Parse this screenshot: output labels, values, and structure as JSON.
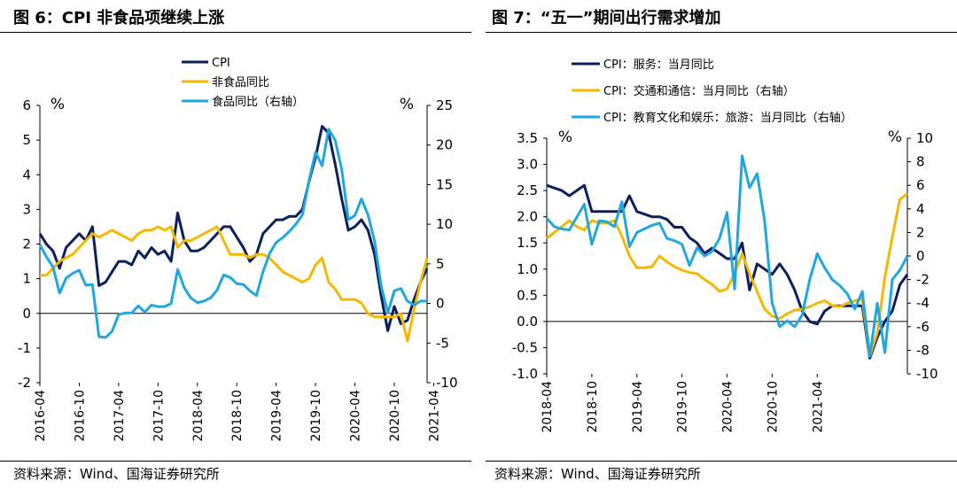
{
  "figures": [
    {
      "title": "图 6：CPI 非食品项继续上涨",
      "source": "资料来源：Wind、国海证券研究所"
    },
    {
      "title": "图 7：“五一”期间出行需求增加",
      "source": "资料来源：Wind、国海证券研究所"
    }
  ],
  "chart_data": [
    {
      "type": "line",
      "y_left": {
        "unit": "%",
        "lim": [
          -2,
          6
        ],
        "ticks": [
          -2,
          -1,
          0,
          1,
          2,
          3,
          4,
          5,
          6
        ]
      },
      "y_right": {
        "unit": "%",
        "lim": [
          -10,
          25
        ],
        "ticks": [
          -10,
          -5,
          0,
          5,
          10,
          15,
          20,
          25
        ]
      },
      "x_start": "2016-04",
      "x_tick_labels": [
        "2016-04",
        "2016-10",
        "2017-04",
        "2017-10",
        "2018-04",
        "2018-10",
        "2019-04",
        "2019-10",
        "2020-04",
        "2020-10",
        "2021-04"
      ],
      "legend_position": "top",
      "series": [
        {
          "name": "CPI",
          "axis": "left",
          "color": "#0b1f5c",
          "values": [
            2.3,
            2.0,
            1.8,
            1.3,
            1.9,
            2.1,
            2.3,
            2.1,
            2.5,
            0.8,
            0.9,
            1.2,
            1.5,
            1.5,
            1.4,
            1.8,
            1.6,
            1.9,
            1.7,
            1.8,
            1.5,
            2.9,
            2.1,
            1.8,
            1.8,
            1.9,
            2.1,
            2.3,
            2.5,
            2.5,
            2.2,
            1.9,
            1.5,
            1.7,
            2.3,
            2.5,
            2.7,
            2.7,
            2.8,
            2.8,
            3.0,
            3.8,
            4.5,
            5.4,
            5.2,
            4.3,
            3.3,
            2.4,
            2.5,
            2.7,
            2.4,
            1.7,
            0.5,
            -0.5,
            0.2,
            -0.3,
            -0.2,
            0.4,
            0.9,
            1.3
          ]
        },
        {
          "name": "非食品同比",
          "axis": "left",
          "color": "#f5b800",
          "values": [
            1.1,
            1.1,
            1.3,
            1.5,
            1.6,
            1.7,
            1.9,
            2.1,
            2.3,
            2.2,
            2.3,
            2.4,
            2.3,
            2.2,
            2.1,
            2.3,
            2.4,
            2.4,
            2.5,
            2.4,
            2.5,
            1.9,
            2.1,
            2.1,
            2.2,
            2.3,
            2.4,
            2.5,
            2.1,
            1.7,
            1.7,
            1.7,
            1.6,
            1.7,
            1.7,
            1.6,
            1.4,
            1.2,
            1.1,
            1.0,
            0.9,
            1.0,
            1.4,
            1.6,
            0.9,
            0.7,
            0.4,
            0.4,
            0.4,
            0.3,
            0.0,
            -0.1,
            -0.1,
            -0.1,
            -0.1,
            0.0,
            -0.8,
            0.1,
            0.9,
            1.6
          ]
        },
        {
          "name": "食品同比（右轴）",
          "axis": "right",
          "color": "#1fa8e0",
          "values": [
            7.4,
            5.9,
            4.6,
            1.3,
            3.2,
            3.8,
            4.2,
            2.3,
            2.4,
            -4.2,
            -4.3,
            -3.5,
            -1.4,
            -1.2,
            -1.2,
            -0.3,
            -1.1,
            -0.2,
            -0.4,
            -0.4,
            0.0,
            4.3,
            2.0,
            0.7,
            0.1,
            0.3,
            0.7,
            1.7,
            3.6,
            3.3,
            2.5,
            2.4,
            1.6,
            1.0,
            4.0,
            6.3,
            7.7,
            8.3,
            9.1,
            10.0,
            11.2,
            15.5,
            19.1,
            17.4,
            22.0,
            20.6,
            16.9,
            10.6,
            11.1,
            13.2,
            11.2,
            7.9,
            2.2,
            -1.2,
            1.6,
            1.9,
            0.3,
            -0.2,
            0.3,
            0.3
          ]
        }
      ]
    },
    {
      "type": "line",
      "y_left": {
        "unit": "%",
        "lim": [
          -1.0,
          3.5
        ],
        "ticks": [
          "-1.0",
          "-0.5",
          "0.0",
          "0.5",
          "1.0",
          "1.5",
          "2.0",
          "2.5",
          "3.0",
          "3.5"
        ]
      },
      "y_right": {
        "unit": "%",
        "lim": [
          -10,
          10
        ],
        "ticks": [
          -10,
          -8,
          -6,
          -4,
          -2,
          0,
          2,
          4,
          6,
          8,
          10
        ]
      },
      "x_start": "2018-04",
      "x_tick_labels": [
        "2018-04",
        "2018-10",
        "2019-04",
        "2019-10",
        "2020-04",
        "2020-10",
        "2021-04"
      ],
      "legend_position": "top",
      "series": [
        {
          "name": "CPI：服务：当月同比",
          "axis": "left",
          "color": "#0b1f5c",
          "values": [
            2.6,
            2.55,
            2.5,
            2.4,
            2.5,
            2.6,
            2.1,
            2.1,
            2.1,
            2.1,
            2.1,
            2.4,
            2.1,
            2.05,
            2.0,
            2.0,
            1.95,
            1.8,
            1.8,
            1.6,
            1.5,
            1.3,
            1.4,
            1.3,
            1.2,
            1.2,
            1.5,
            0.6,
            1.1,
            1.0,
            0.9,
            1.1,
            0.9,
            0.6,
            0.2,
            0.0,
            -0.05,
            0.2,
            0.3,
            0.3,
            0.3,
            0.3,
            0.3,
            -0.7,
            -0.3,
            0.0,
            0.2,
            0.7,
            0.9
          ]
        },
        {
          "name": "CPI：交通和通信：当月同比（右轴）",
          "axis": "right",
          "color": "#f5b800",
          "values": [
            1.5,
            2.0,
            2.5,
            3.0,
            2.5,
            2.2,
            3.0,
            2.8,
            2.8,
            3.0,
            1.7,
            0.0,
            -1.0,
            -1.0,
            -0.9,
            0.0,
            -0.5,
            -0.9,
            -1.2,
            -1.4,
            -1.5,
            -2.0,
            -2.4,
            -3.0,
            -2.8,
            -1.5,
            0.2,
            -1.5,
            -3.0,
            -4.5,
            -5.1,
            -5.3,
            -4.9,
            -4.6,
            -4.5,
            -4.3,
            -4.0,
            -3.8,
            -4.2,
            -4.3,
            -4.0,
            -3.8,
            -3.6,
            -8.5,
            -6.5,
            -1.8,
            1.6,
            4.8,
            5.3
          ]
        },
        {
          "name": "CPI：教育文化和娱乐：旅游：当月同比（右轴）",
          "axis": "right",
          "color": "#1fa8e0",
          "values": [
            3.2,
            2.5,
            2.3,
            2.2,
            3.3,
            4.4,
            1.0,
            3.0,
            2.9,
            2.5,
            4.6,
            0.8,
            2.0,
            2.3,
            2.6,
            2.8,
            1.5,
            1.3,
            1.0,
            -0.8,
            0.7,
            0.0,
            0.4,
            1.5,
            3.7,
            -2.8,
            8.5,
            5.8,
            7.0,
            3.0,
            -4.0,
            -6.0,
            -5.5,
            -6.0,
            -5.0,
            -2.0,
            0.2,
            -1.0,
            -2.0,
            -2.5,
            -3.2,
            -4.5,
            -3.0,
            -8.5,
            -4.0,
            -8.2,
            -2.0,
            -1.2,
            0.0
          ]
        }
      ]
    }
  ]
}
